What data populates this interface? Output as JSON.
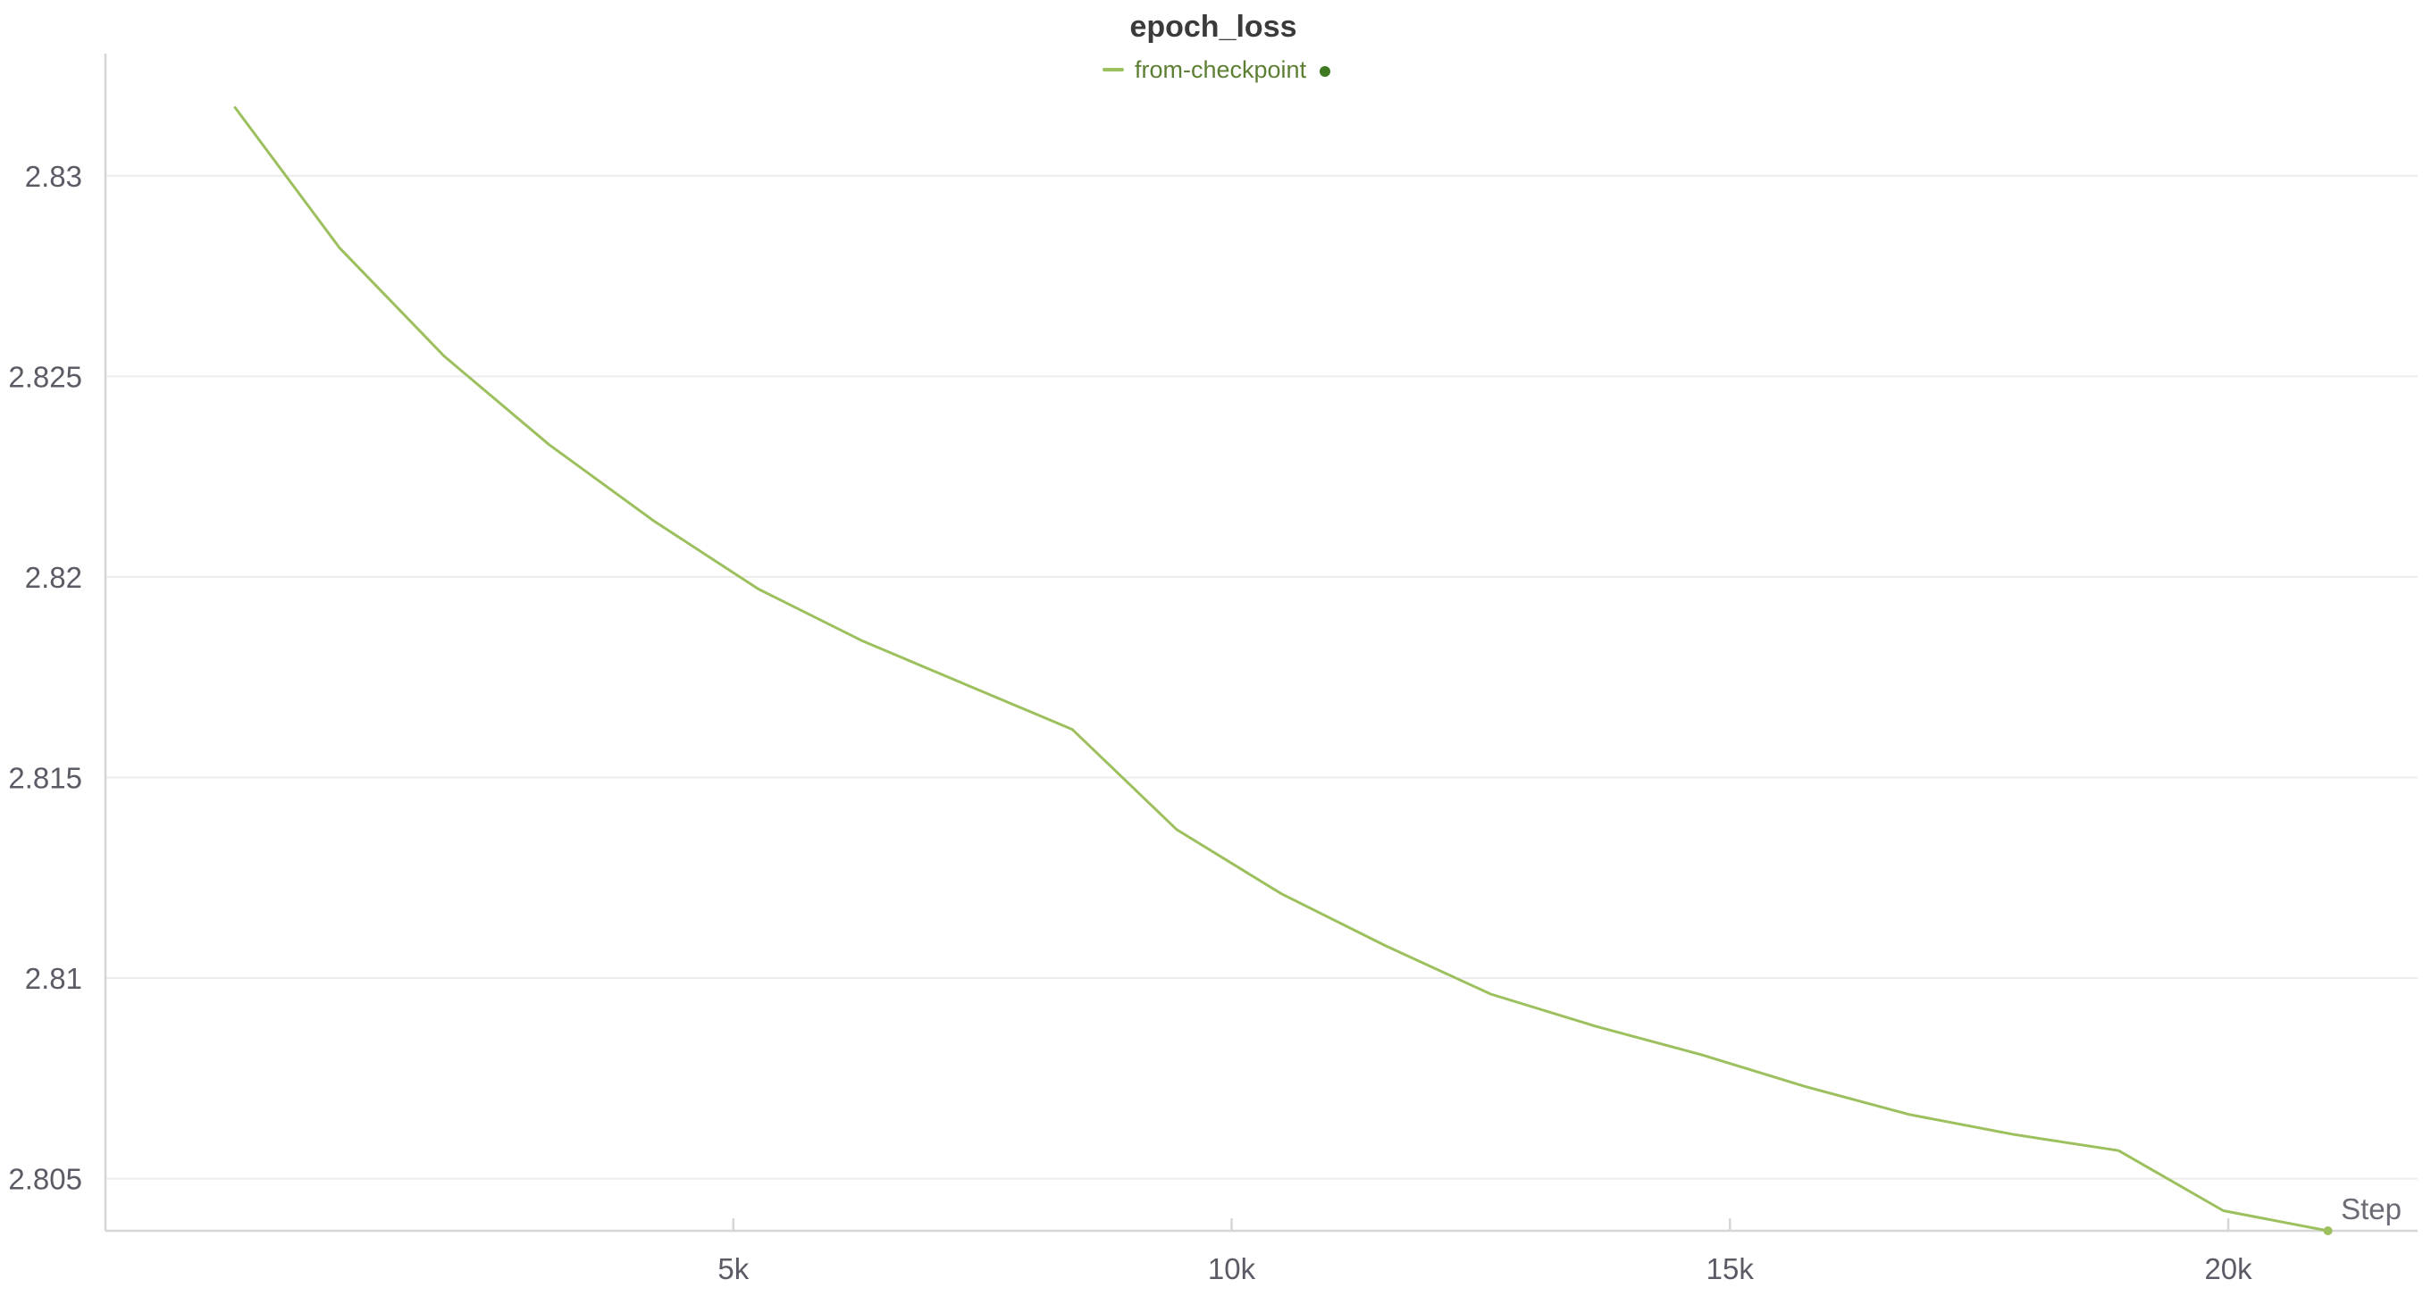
{
  "chart_data": {
    "type": "line",
    "title": "epoch_loss",
    "xlabel": "Step",
    "ylabel": "",
    "xlim": [
      -1300,
      21900
    ],
    "ylim": [
      2.8037,
      2.8326
    ],
    "x_ticks": [
      5000,
      10000,
      15000,
      20000
    ],
    "x_tick_labels": [
      "5k",
      "10k",
      "15k",
      "20k"
    ],
    "y_ticks": [
      2.805,
      2.81,
      2.815,
      2.82,
      2.825,
      2.83
    ],
    "y_tick_labels": [
      "2.805",
      "2.81",
      "2.815",
      "2.82",
      "2.825",
      "2.83"
    ],
    "grid": "horizontal",
    "legend_position": "top-center",
    "series": [
      {
        "name": "from-checkpoint",
        "color": "#9dc05e",
        "x": [
          1,
          1050,
          2100,
          3150,
          4200,
          5250,
          6300,
          7350,
          8400,
          9450,
          10500,
          11550,
          12600,
          13650,
          14700,
          15750,
          16800,
          17850,
          18900,
          19950,
          21000
        ],
        "y": [
          2.8317,
          2.8282,
          2.8255,
          2.8233,
          2.8214,
          2.8197,
          2.8184,
          2.8173,
          2.8162,
          2.8137,
          2.8121,
          2.8108,
          2.8096,
          2.8088,
          2.8081,
          2.8073,
          2.8066,
          2.8061,
          2.8057,
          2.8042,
          2.8037
        ]
      }
    ]
  }
}
